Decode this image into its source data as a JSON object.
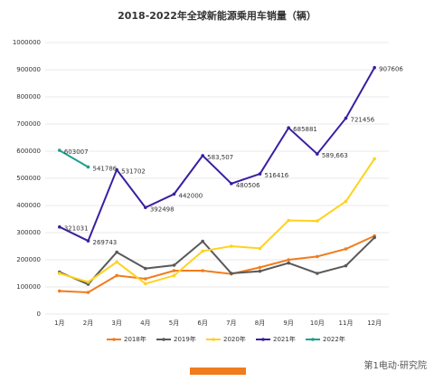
{
  "chart_data": {
    "type": "line",
    "title": "2018-2022年全球新能源乘用车销量（辆）",
    "categories": [
      "1月",
      "2月",
      "3月",
      "4月",
      "5月",
      "6月",
      "7月",
      "8月",
      "9月",
      "10月",
      "11月",
      "12月"
    ],
    "series": [
      {
        "name": "2018年",
        "color": "#f07c1e",
        "values": [
          85000,
          80000,
          142000,
          130000,
          160000,
          160000,
          148000,
          172000,
          200000,
          212000,
          240000,
          288000
        ]
      },
      {
        "name": "2019年",
        "color": "#595959",
        "values": [
          155000,
          110000,
          228000,
          168000,
          180000,
          268000,
          150000,
          158000,
          188000,
          150000,
          178000,
          282000
        ]
      },
      {
        "name": "2020年",
        "color": "#ffd21e",
        "values": [
          150000,
          118000,
          192000,
          112000,
          142000,
          232000,
          250000,
          242000,
          345000,
          343000,
          415000,
          572000
        ]
      },
      {
        "name": "2021年",
        "color": "#3a1fa0",
        "values": [
          321031,
          269743,
          531702,
          392498,
          442000,
          583507,
          480506,
          516416,
          685881,
          589663,
          721456,
          907606
        ],
        "value_labels": [
          "321031",
          "269743",
          "531702",
          "392498",
          "442000",
          "583,507",
          "480506",
          "516416",
          "685881",
          "589,663",
          "721456",
          "907606"
        ]
      },
      {
        "name": "2022年",
        "color": "#1fa08c",
        "values": [
          603007,
          541786,
          null,
          null,
          null,
          null,
          null,
          null,
          null,
          null,
          null,
          null
        ],
        "value_labels": [
          "603007",
          "541786",
          null,
          null,
          null,
          null,
          null,
          null,
          null,
          null,
          null,
          null
        ]
      }
    ],
    "ylim": [
      0,
      1000000
    ],
    "yticks": [
      0,
      100000,
      200000,
      300000,
      400000,
      500000,
      600000,
      700000,
      800000,
      900000,
      1000000
    ],
    "grid": true,
    "legend": "bottom",
    "footer_logo": "第1电动·研究院"
  }
}
